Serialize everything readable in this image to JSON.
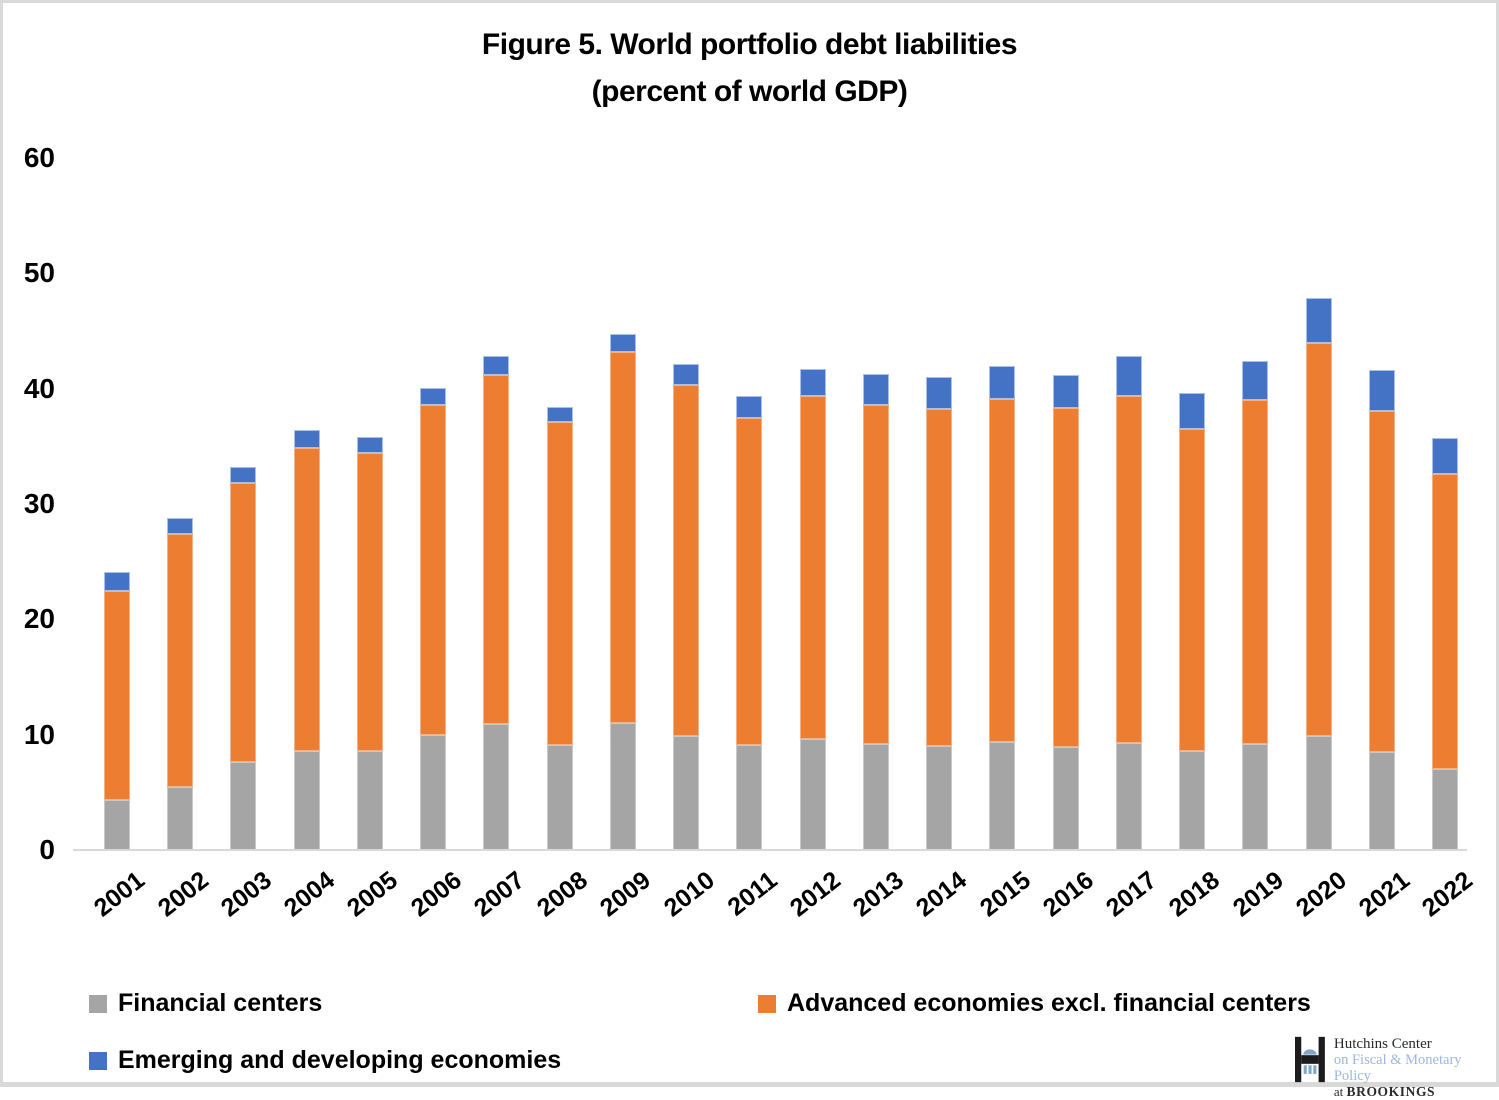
{
  "title": {
    "line1": "Figure 5. World portfolio debt liabilities",
    "line2": "(percent of world GDP)"
  },
  "chart_data": {
    "type": "bar",
    "stacked": true,
    "title": "Figure 5. World portfolio debt liabilities (percent of world GDP)",
    "xlabel": "",
    "ylabel": "",
    "ylim": [
      0,
      60
    ],
    "yticks": [
      0,
      10,
      20,
      30,
      40,
      50,
      60
    ],
    "grid": false,
    "legend_position": "bottom",
    "categories": [
      "2001",
      "2002",
      "2003",
      "2004",
      "2005",
      "2006",
      "2007",
      "2008",
      "2009",
      "2010",
      "2011",
      "2012",
      "2013",
      "2014",
      "2015",
      "2016",
      "2017",
      "2018",
      "2019",
      "2020",
      "2021",
      "2022"
    ],
    "series": [
      {
        "name": "Financial centers",
        "color": "#A5A5A5",
        "values": [
          4.3,
          5.5,
          7.6,
          8.6,
          8.6,
          10.0,
          10.9,
          9.1,
          11.0,
          9.9,
          9.1,
          9.6,
          9.2,
          9.0,
          9.4,
          8.9,
          9.3,
          8.6,
          9.2,
          9.9,
          8.5,
          7.0
        ]
      },
      {
        "name": "Advanced economies excl. financial centers",
        "color": "#ED7D31",
        "values": [
          18.2,
          21.9,
          24.2,
          26.3,
          25.8,
          28.6,
          30.3,
          28.0,
          32.2,
          30.4,
          28.4,
          29.8,
          29.4,
          29.2,
          29.7,
          29.4,
          30.1,
          27.9,
          29.8,
          34.1,
          29.6,
          25.6
        ]
      },
      {
        "name": "Emerging and developing economies",
        "color": "#4472C4",
        "values": [
          1.6,
          1.4,
          1.4,
          1.5,
          1.4,
          1.5,
          1.6,
          1.3,
          1.5,
          1.8,
          1.9,
          2.3,
          2.7,
          2.8,
          2.9,
          2.9,
          3.4,
          3.1,
          3.4,
          3.9,
          3.5,
          3.1
        ]
      }
    ],
    "totals": [
      24.1,
      28.8,
      33.2,
      36.4,
      35.8,
      40.1,
      42.8,
      38.4,
      44.7,
      42.1,
      39.4,
      41.7,
      41.3,
      41.0,
      42.0,
      41.2,
      42.8,
      39.6,
      42.4,
      47.9,
      41.6,
      35.7
    ]
  },
  "logo": {
    "line1": "Hutchins Center",
    "line2": "on Fiscal & Monetary Policy",
    "line3_prefix": "at",
    "line3_name": "BROOKINGS"
  },
  "colors": {
    "axis_line": "#d9d9d9",
    "text": "#000000",
    "frame_border": "#d9d9d9",
    "logo_mark_black": "#1c1c1c",
    "logo_mark_blue": "#7fa6cb"
  }
}
